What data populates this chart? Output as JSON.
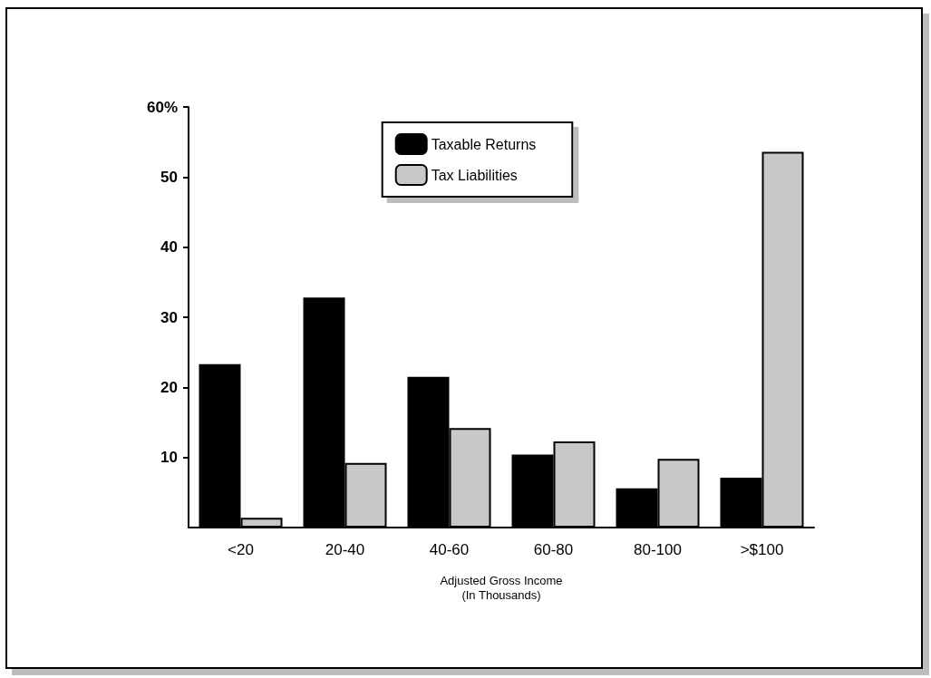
{
  "chart_data": {
    "type": "bar",
    "xlabel": "Adjusted Gross Income\n(In Thousands)",
    "categories": [
      "<20",
      "20-40",
      "40-60",
      "60-80",
      "80-100",
      ">$100"
    ],
    "series": [
      {
        "name": "Taxable Returns",
        "color": "#000000",
        "values": [
          23.3,
          32.8,
          21.5,
          10.4,
          5.6,
          7.1
        ]
      },
      {
        "name": "Tax Liabilities",
        "color": "#c8c8c8",
        "values": [
          1.4,
          9.2,
          14.2,
          12.3,
          9.8,
          53.6
        ]
      }
    ],
    "ylim": [
      0,
      60
    ],
    "yticks": [
      10,
      20,
      30,
      40,
      50,
      {
        "value": 60,
        "label": "60%"
      }
    ],
    "grid": false,
    "legend": "top"
  }
}
